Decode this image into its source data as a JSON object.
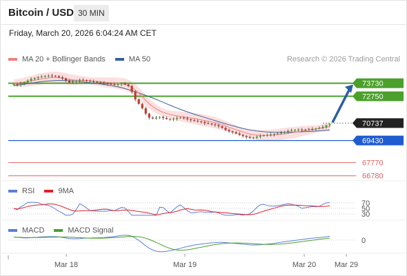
{
  "header": {
    "title": "Bitcoin / USD",
    "timeframe": "30 MIN"
  },
  "datetime": "Friday, March 20, 2026 6:04:24 AM CET",
  "legends": {
    "price": [
      {
        "label": "MA 20 + Bollinger Bands",
        "color": "#f08080"
      },
      {
        "label": "MA 50",
        "color": "#3a5fa0"
      }
    ],
    "rsi": [
      {
        "label": "RSI",
        "color": "#5b7fd6"
      },
      {
        "label": "9MA",
        "color": "#e0202a"
      }
    ],
    "macd": [
      {
        "label": "MACD",
        "color": "#5b7fd6"
      },
      {
        "label": "MACD Signal",
        "color": "#4aa02a"
      }
    ]
  },
  "research": "Research © 2026 Trading Central",
  "colors": {
    "up": "#4aa02a",
    "down": "#c0392b",
    "pivot": "#222222",
    "support": "#1f5bd1",
    "resistance_red": "#e06060",
    "arrow": "#2b5fa5",
    "band": "#fbd9d9"
  },
  "chart_data": {
    "type": "candlestick",
    "price_ylim": [
      66300,
      74800
    ],
    "levels": [
      {
        "value": 73730,
        "label": "73730",
        "kind": "resistance"
      },
      {
        "value": 72750,
        "label": "72750",
        "kind": "resistance"
      },
      {
        "value": 70737,
        "label": "70737",
        "kind": "pivot"
      },
      {
        "value": 69430,
        "label": "69430",
        "kind": "support"
      },
      {
        "value": 67770,
        "label": "67770",
        "kind": "minor"
      },
      {
        "value": 66780,
        "label": "66780",
        "kind": "minor"
      }
    ],
    "close": [
      73650,
      73590,
      73720,
      73800,
      73930,
      74050,
      74120,
      74180,
      74230,
      74280,
      74310,
      74290,
      74250,
      74180,
      74090,
      73950,
      73780,
      73840,
      73910,
      73980,
      73960,
      73920,
      73880,
      73850,
      73800,
      73760,
      73720,
      73690,
      73660,
      73620,
      73660,
      73700,
      73640,
      73520,
      73080,
      72520,
      72180,
      71850,
      71450,
      71150,
      71080,
      71150,
      71200,
      71120,
      71050,
      71000,
      71060,
      71120,
      71150,
      71090,
      71020,
      70960,
      70900,
      70860,
      70820,
      70730,
      70700,
      70640,
      70580,
      70500,
      70380,
      70220,
      70120,
      70050,
      69950,
      69850,
      69760,
      69680,
      69620,
      69650,
      69720,
      69780,
      69820,
      69850,
      69880,
      69920,
      69960,
      70020,
      70090,
      70160,
      70200,
      70230,
      70250,
      70200,
      70260,
      70300,
      70280,
      70330,
      70390,
      70450,
      70570,
      70650
    ],
    "ma20": [
      73750,
      73760,
      73780,
      73810,
      73850,
      73900,
      73960,
      74010,
      74060,
      74100,
      74130,
      74150,
      74160,
      74150,
      74120,
      74070,
      74020,
      73990,
      73970,
      73960,
      73950,
      73930,
      73910,
      73890,
      73860,
      73840,
      73810,
      73790,
      73770,
      73750,
      73730,
      73700,
      73650,
      73560,
      73420,
      73220,
      72980,
      72720,
      72440,
      72190,
      71980,
      71800,
      71660,
      71550,
      71460,
      71390,
      71330,
      71280,
      71240,
      71200,
      71160,
      71120,
      71080,
      71030,
      70980,
      70930,
      70880,
      70820,
      70760,
      70690,
      70610,
      70520,
      70430,
      70340,
      70250,
      70160,
      70070,
      69990,
      69920,
      69870,
      69840,
      69820,
      69810,
      69810,
      69820,
      69840,
      69870,
      69900,
      69930,
      69970,
      70010,
      70050,
      70090,
      70130,
      70170,
      70210,
      70250,
      70290,
      70330,
      70370,
      70420,
      70470
    ],
    "ma50": [
      73550,
      73580,
      73620,
      73660,
      73700,
      73740,
      73780,
      73820,
      73850,
      73880,
      73900,
      73920,
      73930,
      73940,
      73940,
      73930,
      73920,
      73900,
      73880,
      73860,
      73830,
      73800,
      73770,
      73740,
      73710,
      73680,
      73640,
      73600,
      73560,
      73510,
      73460,
      73400,
      73330,
      73250,
      73170,
      73090,
      73000,
      72910,
      72820,
      72720,
      72620,
      72520,
      72410,
      72300,
      72190,
      72080,
      71970,
      71870,
      71770,
      71670,
      71580,
      71490,
      71400,
      71320,
      71240,
      71160,
      71080,
      71000,
      70920,
      70840,
      70760,
      70680,
      70610,
      70540,
      70470,
      70400,
      70340,
      70280,
      70230,
      70190,
      70150,
      70120,
      70090,
      70070,
      70060,
      70050,
      70040,
      70040,
      70040,
      70050,
      70060,
      70070,
      70080,
      70090,
      70100,
      70110,
      70120,
      70140,
      70160,
      70180,
      70200,
      70220
    ],
    "forecast_arrow": {
      "from": 70737,
      "to": 73730
    },
    "rsi": {
      "ylim": [
        20,
        80
      ],
      "levels": [
        70,
        50,
        30
      ],
      "labels": [
        "70",
        "50",
        "30"
      ]
    },
    "macd": {
      "zero_label": "0"
    },
    "x_ticks": [
      "Mar 18",
      "Mar 19",
      "Mar 20",
      "Mar 29"
    ]
  }
}
